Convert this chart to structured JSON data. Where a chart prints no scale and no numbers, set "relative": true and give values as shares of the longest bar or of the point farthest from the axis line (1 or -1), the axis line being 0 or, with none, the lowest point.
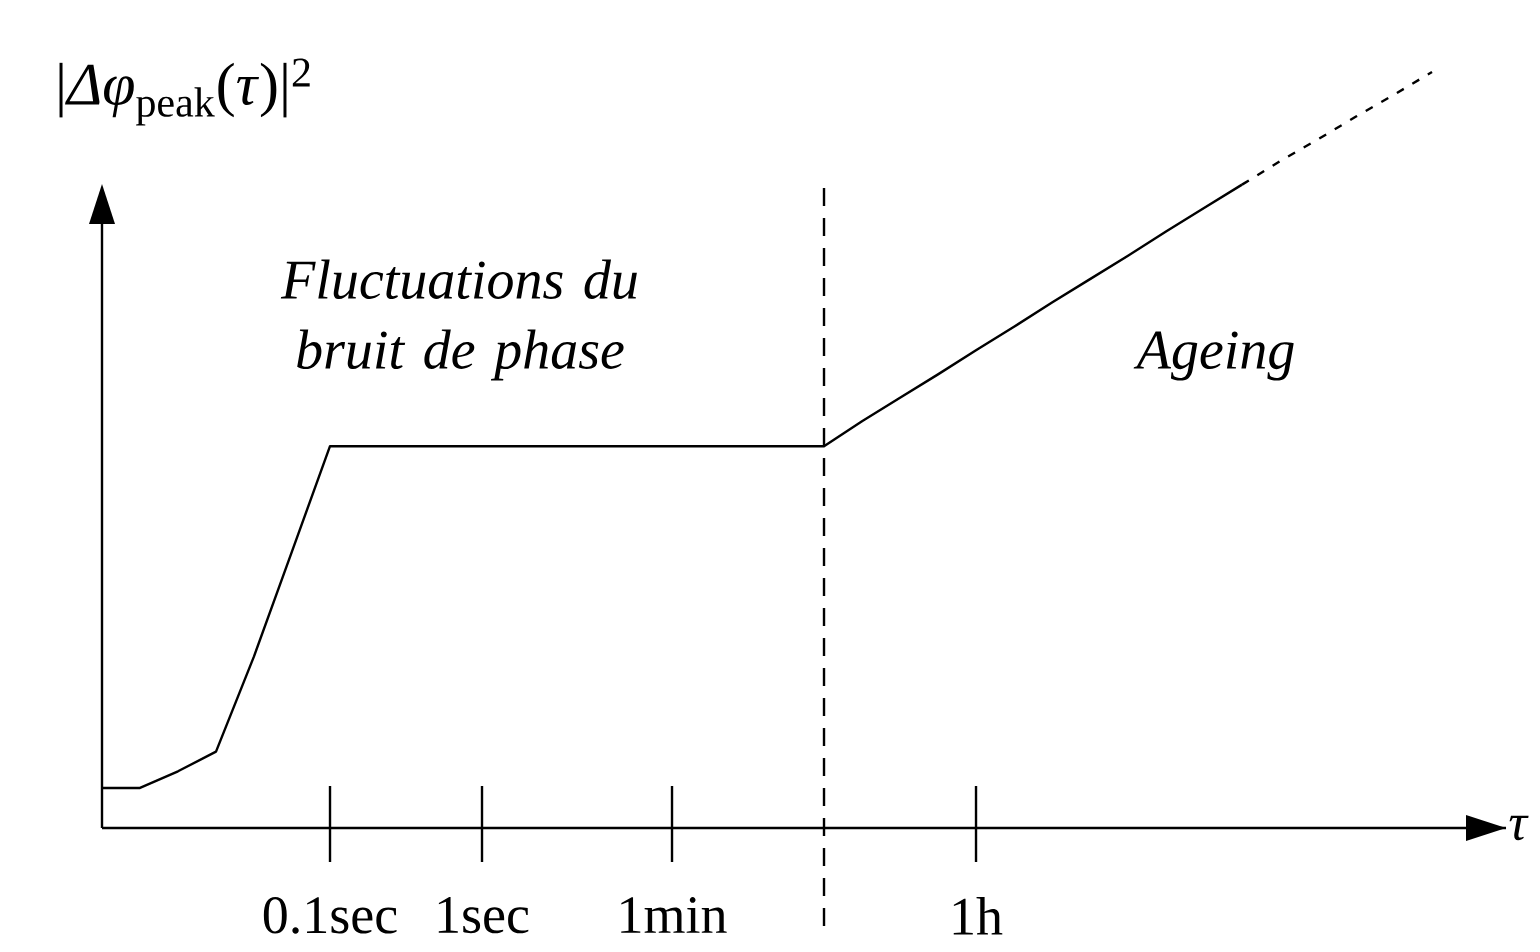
{
  "chart_data": {
    "type": "line",
    "ylabel": "|*Δφ*$_{peak}$(*τ*)|$^{2}$",
    "xlabel": "τ",
    "annotations": [
      "Fluctuations du bruit de phase",
      "Ageing"
    ],
    "relative": true,
    "categories": [
      null,
      null,
      null,
      null,
      null,
      null,
      "0.1sec",
      null,
      null,
      null,
      "1sec",
      null,
      null,
      null,
      null,
      "1min",
      null,
      null,
      null,
      null,
      null,
      null,
      null,
      "1h",
      null,
      null,
      null,
      null,
      null,
      null,
      null,
      null,
      null,
      null,
      null,
      null
    ],
    "series": [
      {
        "color": "#000000",
        "line_style": "solid",
        "values": [
          0.053,
          0.053,
          0.075,
          0.101,
          0.227,
          0.366,
          0.505,
          0.505,
          0.505,
          0.505,
          0.505,
          0.505,
          0.505,
          0.505,
          0.505,
          0.505,
          0.505,
          0.505,
          0.505,
          0.505,
          0.538,
          0.569,
          0.6,
          0.632,
          0.663,
          0.695,
          0.726,
          0.757,
          0.789,
          0.82,
          0.851,
          null,
          null,
          null,
          null,
          null
        ]
      },
      {
        "color": "#000000",
        "line_style": "dashed",
        "values": [
          null,
          null,
          null,
          null,
          null,
          null,
          null,
          null,
          null,
          null,
          null,
          null,
          null,
          null,
          null,
          null,
          null,
          null,
          null,
          null,
          null,
          null,
          null,
          null,
          null,
          null,
          null,
          null,
          null,
          null,
          0.851,
          0.882,
          0.911,
          0.941,
          0.97,
          1
        ]
      }
    ],
    "tick_labels": "x",
    "marker": "none"
  }
}
